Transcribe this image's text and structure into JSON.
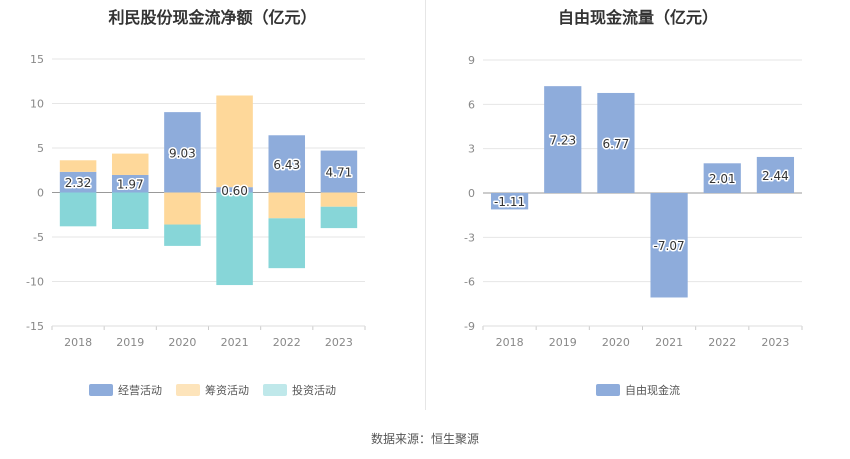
{
  "chart_data": [
    {
      "type": "bar",
      "stacked": true,
      "title": "利民股份现金流净额（亿元）",
      "categories": [
        "2018",
        "2019",
        "2020",
        "2021",
        "2022",
        "2023"
      ],
      "ylim": [
        -15,
        15
      ],
      "yticks": [
        15,
        10,
        5,
        0,
        -5,
        -10,
        -15
      ],
      "series": [
        {
          "name": "经营活动",
          "color": "#8eacdb",
          "values": [
            2.32,
            1.97,
            9.03,
            0.6,
            6.43,
            4.71
          ],
          "labels": [
            "2.32",
            "1.97",
            "9.03",
            "0.60",
            "6.43",
            "4.71"
          ]
        },
        {
          "name": "筹资活动",
          "color": "#fed89a",
          "values": [
            1.3,
            2.4,
            -3.6,
            10.3,
            -2.9,
            -1.6
          ]
        },
        {
          "name": "投资活动",
          "color": "#87d6d8",
          "values": [
            -3.8,
            -4.1,
            -2.4,
            -10.4,
            -5.6,
            -2.4
          ]
        }
      ],
      "legend": [
        {
          "name": "经营活动",
          "color": "#8eacdb"
        },
        {
          "name": "筹资活动",
          "color": "#fde4bb"
        },
        {
          "name": "投资活动",
          "color": "#bfe8ea"
        }
      ]
    },
    {
      "type": "bar",
      "title": "自由现金流量（亿元）",
      "categories": [
        "2018",
        "2019",
        "2020",
        "2021",
        "2022",
        "2023"
      ],
      "ylim": [
        -9,
        9
      ],
      "yticks": [
        9,
        6,
        3,
        0,
        -3,
        -6,
        -9
      ],
      "series": [
        {
          "name": "自由现金流",
          "color": "#8eacdb",
          "values": [
            -1.11,
            7.23,
            6.77,
            -7.07,
            2.01,
            2.44
          ],
          "labels": [
            "-1.11",
            "7.23",
            "6.77",
            "-7.07",
            "2.01",
            "2.44"
          ]
        }
      ],
      "legend": [
        {
          "name": "自由现金流",
          "color": "#8eacdb"
        }
      ]
    }
  ],
  "footer": {
    "source": "数据来源：恒生聚源"
  }
}
